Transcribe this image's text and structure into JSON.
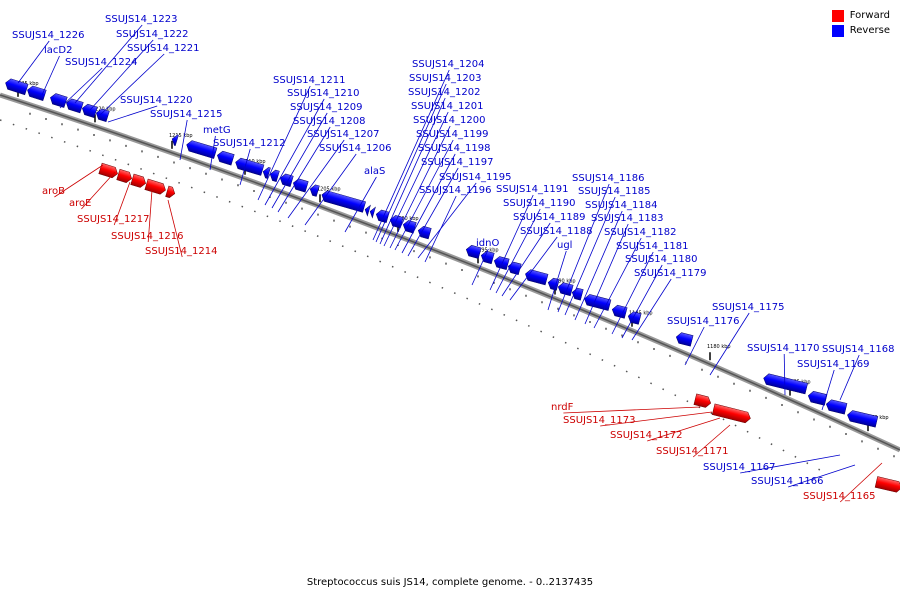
{
  "legend": {
    "forward": {
      "label": "Forward",
      "color": "#ff0000"
    },
    "reverse": {
      "label": "Reverse",
      "color": "#0000ff"
    }
  },
  "caption": "Streptococcus suis JS14, complete genome. - 0..2137435",
  "ticks": [
    "1225 kbp",
    "1220 kbp",
    "1215 kbp",
    "1210 kbp",
    "1205 kbp",
    "1200 kbp",
    "1195 kbp",
    "1190 kbp",
    "1185 kbp",
    "1180 kbp",
    "1175 kbp",
    "1170 kbp"
  ],
  "reverse_labels": [
    "SSUJS14_1226",
    "lacD2",
    "SSUJS14_1223",
    "SSUJS14_1222",
    "SSUJS14_1221",
    "SSUJS14_1224",
    "SSUJS14_1220",
    "SSUJS14_1215",
    "metG",
    "SSUJS14_1212",
    "SSUJS14_1211",
    "SSUJS14_1210",
    "SSUJS14_1209",
    "SSUJS14_1208",
    "SSUJS14_1207",
    "SSUJS14_1206",
    "alaS",
    "SSUJS14_1204",
    "SSUJS14_1203",
    "SSUJS14_1202",
    "SSUJS14_1201",
    "SSUJS14_1200",
    "SSUJS14_1199",
    "SSUJS14_1198",
    "SSUJS14_1197",
    "SSUJS14_1195",
    "SSUJS14_1196",
    "SSUJS14_1191",
    "SSUJS14_1190",
    "SSUJS14_1189",
    "SSUJS14_1188",
    "idnO",
    "ugl",
    "SSUJS14_1186",
    "SSUJS14_1185",
    "SSUJS14_1184",
    "SSUJS14_1183",
    "SSUJS14_1182",
    "SSUJS14_1181",
    "SSUJS14_1180",
    "SSUJS14_1179",
    "SSUJS14_1176",
    "SSUJS14_1175",
    "SSUJS14_1170",
    "SSUJS14_1168",
    "SSUJS14_1169",
    "SSUJS14_1167",
    "SSUJS14_1166"
  ],
  "forward_labels": [
    "aroB",
    "aroE",
    "SSUJS14_1217",
    "SSUJS14_1216",
    "SSUJS14_1214",
    "nrdF",
    "SSUJS14_1173",
    "SSUJS14_1172",
    "SSUJS14_1171",
    "SSUJS14_1165"
  ]
}
